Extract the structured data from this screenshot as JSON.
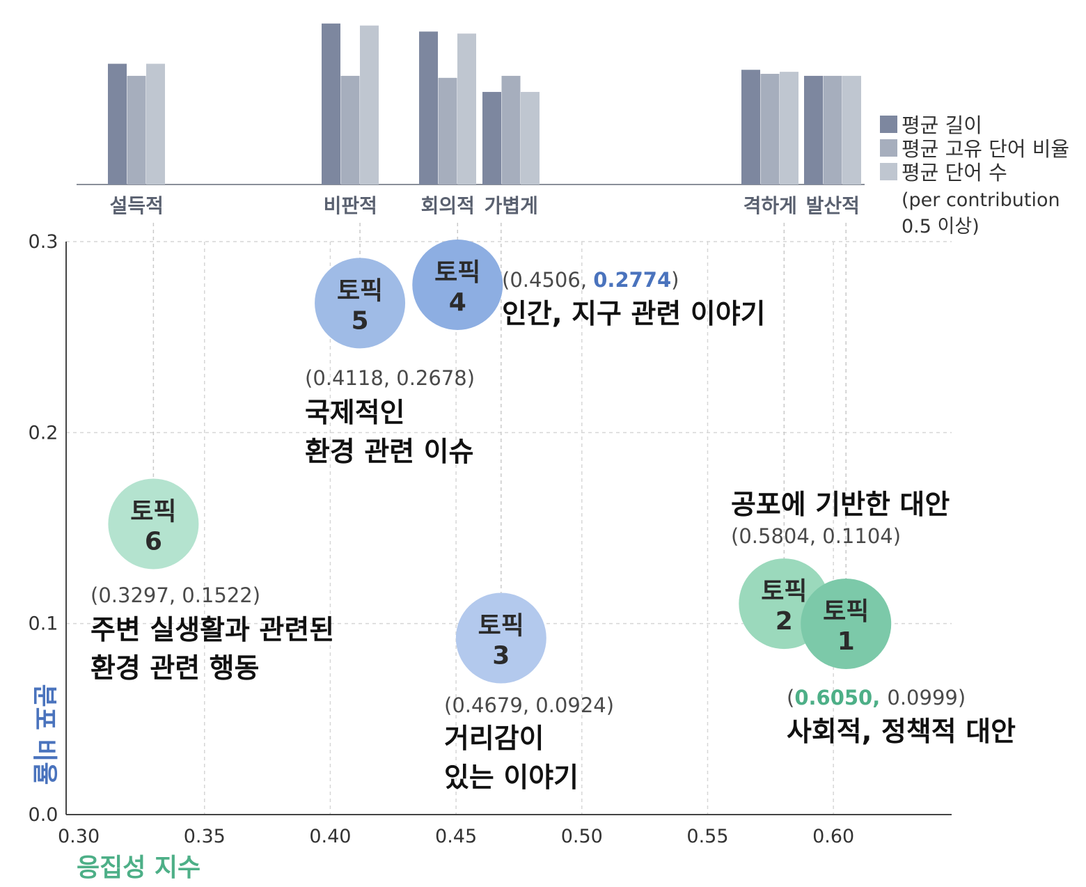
{
  "chart_data": [
    {
      "type": "bar",
      "categories": [
        "설득적",
        "비판적",
        "회의적",
        "가볍게",
        "격하게",
        "발산적"
      ],
      "series": [
        {
          "name": "평균 길이",
          "color": "#7d879f",
          "values": [
            0.6,
            0.8,
            0.76,
            0.46,
            0.57,
            0.54
          ]
        },
        {
          "name": "평균 고유 단어 비율",
          "color": "#a6aebd",
          "values": [
            0.54,
            0.54,
            0.53,
            0.54,
            0.55,
            0.54
          ]
        },
        {
          "name": "평균 단어 수",
          "color": "#bfc6d0",
          "values": [
            0.6,
            0.79,
            0.75,
            0.46,
            0.56,
            0.54
          ]
        }
      ],
      "legend_note": [
        "(per contribution",
        "0.5 이상)"
      ],
      "ylim": [
        0,
        0.82
      ],
      "grid": false,
      "legend_position": "right"
    },
    {
      "type": "scatter",
      "xlabel": "응집성 지수",
      "ylabel": "분포 비율",
      "xlim": [
        0.295,
        0.647
      ],
      "ylim": [
        0.0,
        0.3
      ],
      "xticks": [
        "0.30",
        "0.35",
        "0.40",
        "0.45",
        "0.50",
        "0.55",
        "0.60"
      ],
      "yticks": [
        "0.0",
        "0.1",
        "0.2",
        "0.3"
      ],
      "grid": true,
      "points": [
        {
          "id": 6,
          "label": "토픽",
          "num": "6",
          "x": 0.3297,
          "y": 0.1522,
          "color": "#b4e3cf",
          "coord_open": "(",
          "coord_x": "0.3297",
          "coord_sep": ", ",
          "coord_y": "0.1522",
          "coord_close": ")",
          "highlight": "",
          "desc": [
            "주변 실생활과 관련된",
            "환경 관련 행동"
          ]
        },
        {
          "id": 5,
          "label": "토픽",
          "num": "5",
          "x": 0.4118,
          "y": 0.2678,
          "color": "#9fbbe6",
          "coord_open": "(",
          "coord_x": "0.4118",
          "coord_sep": ", ",
          "coord_y": "0.2678",
          "coord_close": ")",
          "highlight": "",
          "desc": [
            "국제적인",
            "환경 관련 이슈"
          ]
        },
        {
          "id": 4,
          "label": "토픽",
          "num": "4",
          "x": 0.4506,
          "y": 0.2774,
          "color": "#8daee2",
          "coord_open": "(",
          "coord_x": "0.4506",
          "coord_sep": ", ",
          "coord_y": "0.2774",
          "coord_close": ")",
          "highlight": "y",
          "desc": [
            "인간, 지구 관련 이야기"
          ]
        },
        {
          "id": 3,
          "label": "토픽",
          "num": "3",
          "x": 0.4679,
          "y": 0.0924,
          "color": "#b3c9ed",
          "coord_open": "(",
          "coord_x": "0.4679",
          "coord_sep": ", ",
          "coord_y": "0.0924",
          "coord_close": ")",
          "highlight": "",
          "desc": [
            "거리감이",
            "있는 이야기"
          ]
        },
        {
          "id": 2,
          "label": "토픽",
          "num": "2",
          "x": 0.5804,
          "y": 0.1104,
          "color": "#9bd9bc",
          "coord_open": "(",
          "coord_x": "0.5804",
          "coord_sep": ", ",
          "coord_y": "0.1104",
          "coord_close": ")",
          "highlight": "",
          "desc": [
            "공포에 기반한 대안"
          ]
        },
        {
          "id": 1,
          "label": "토픽",
          "num": "1",
          "x": 0.605,
          "y": 0.0999,
          "color": "#7cc9a9",
          "coord_open": "(",
          "coord_x": "0.6050",
          "coord_sep": ", ",
          "coord_y": "0.0999",
          "coord_close": ")",
          "highlight": "x",
          "desc": [
            "사회적, 정책적 대안"
          ]
        }
      ]
    }
  ],
  "colors": {
    "x_title": "#4daf87",
    "y_title": "#4a73bd",
    "highlight_blue": "#4a73bd",
    "highlight_green": "#4daf87"
  }
}
